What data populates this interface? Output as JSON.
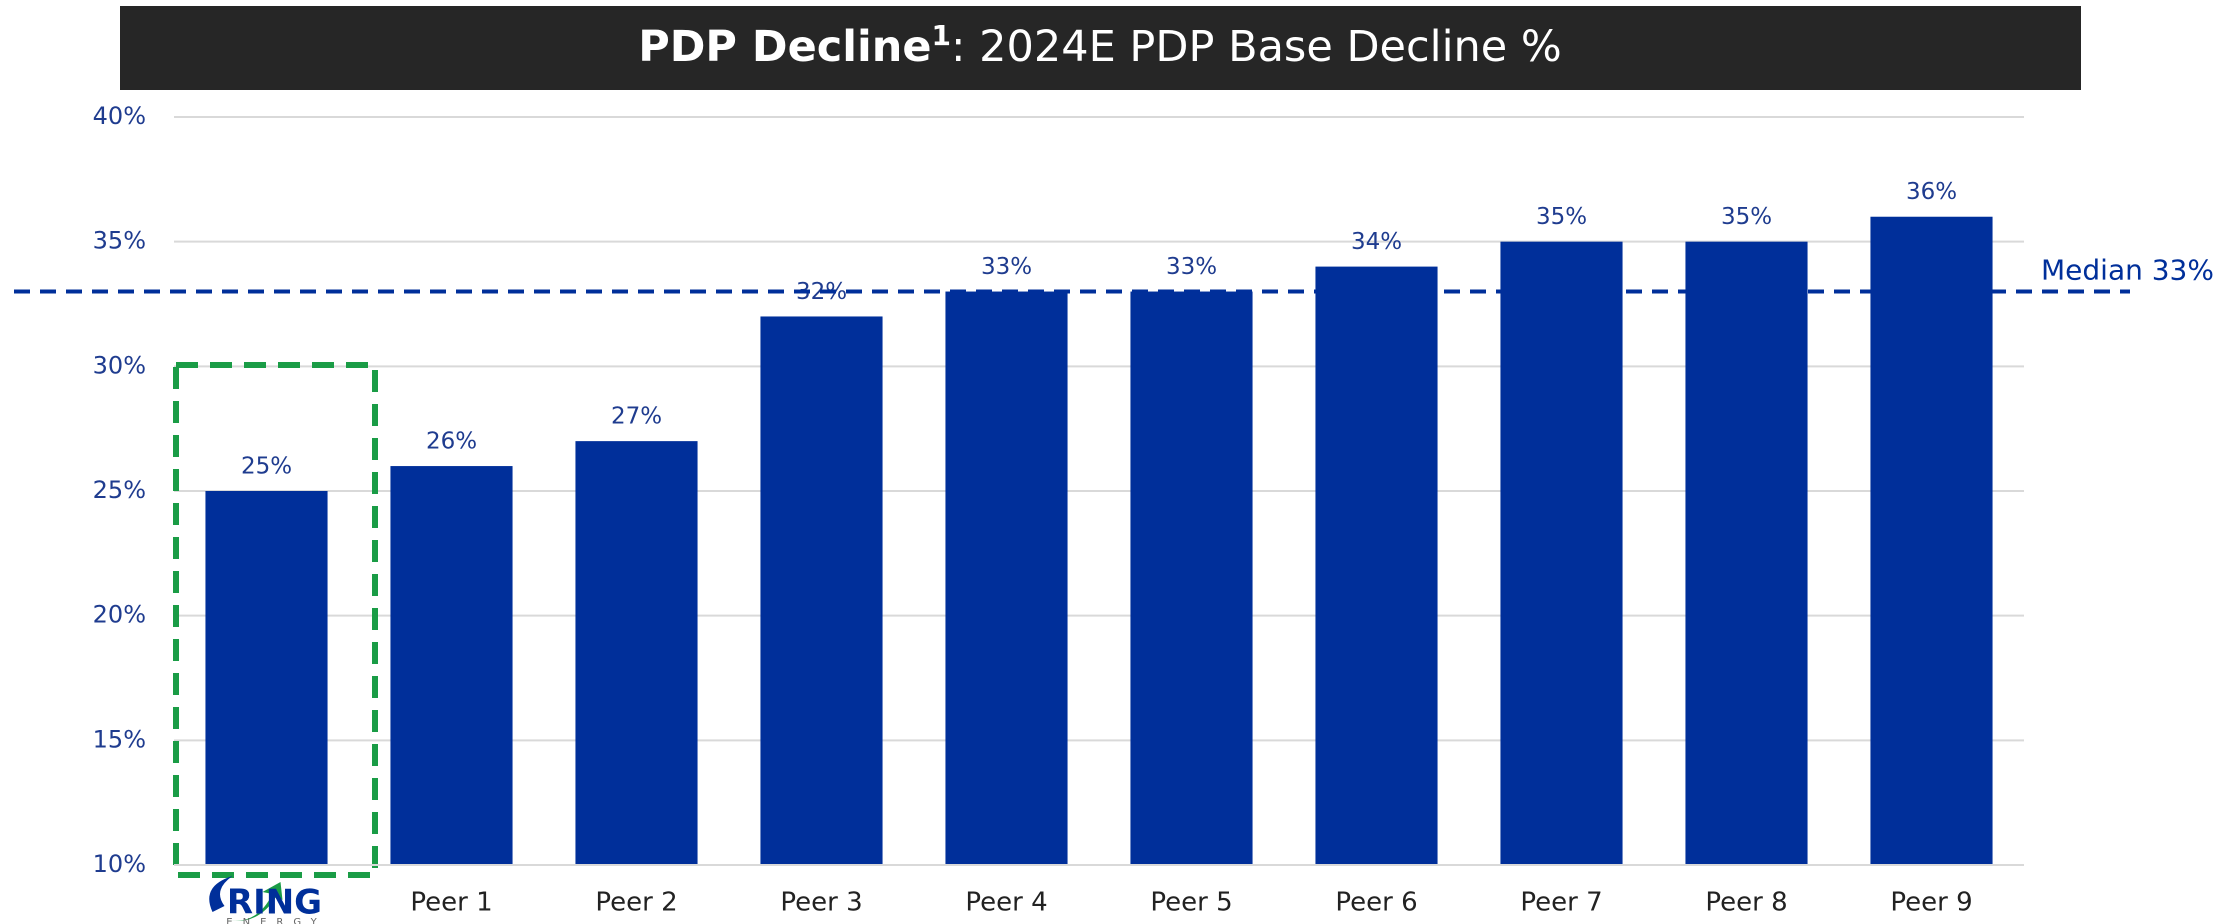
{
  "chart_data": {
    "type": "bar",
    "title": {
      "bold": "PDP Decline",
      "superscript": "1",
      "rest": ": 2024E PDP Base Decline %"
    },
    "categories": [
      "RING",
      "Peer 1",
      "Peer 2",
      "Peer 3",
      "Peer 4",
      "Peer 5",
      "Peer 6",
      "Peer 7",
      "Peer 8",
      "Peer 9"
    ],
    "logo_subtitle": "ENERGY",
    "values": [
      25,
      26,
      27,
      32,
      33,
      33,
      34,
      35,
      35,
      36
    ],
    "value_labels": [
      "25%",
      "26%",
      "27%",
      "32%",
      "33%",
      "33%",
      "34%",
      "35%",
      "35%",
      "36%"
    ],
    "color": "#002f9a",
    "highlight_color": "#1a9c46",
    "median": {
      "value": 33,
      "label": "Median 33%",
      "color": "#002f9a"
    },
    "ylim": [
      10,
      40
    ],
    "yticks": [
      {
        "value": 10,
        "label": "10%"
      },
      {
        "value": 15,
        "label": "15%"
      },
      {
        "value": 20,
        "label": "20%"
      },
      {
        "value": 25,
        "label": "25%"
      },
      {
        "value": 30,
        "label": "30%"
      },
      {
        "value": 35,
        "label": "35%"
      },
      {
        "value": 40,
        "label": "40%"
      }
    ],
    "grid": true
  }
}
